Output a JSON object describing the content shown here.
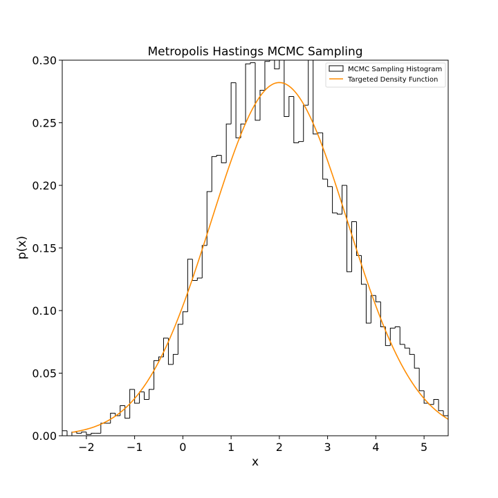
{
  "chart_data": {
    "type": "line",
    "title": "Metropolis Hastings MCMC Sampling",
    "xlabel": "x",
    "ylabel": "p(x)",
    "xlim": [
      -2.5,
      5.5
    ],
    "ylim": [
      0.0,
      0.3
    ],
    "xticks": [
      -2,
      -1,
      0,
      1,
      2,
      3,
      4,
      5
    ],
    "yticks": [
      0.0,
      0.05,
      0.1,
      0.15,
      0.2,
      0.25,
      0.3
    ],
    "ytick_labels": [
      "0.00",
      "0.05",
      "0.10",
      "0.15",
      "0.20",
      "0.25",
      "0.30"
    ],
    "grid": false,
    "legend_position": "top-right",
    "colors": {
      "histogram": "#000000",
      "density": "#ff8c00"
    },
    "series": [
      {
        "name": "MCMC Sampling Histogram",
        "type": "histogram-step",
        "bin_edges": [
          -2.5,
          -2.4,
          -2.3,
          -2.2,
          -2.1,
          -2.0,
          -1.9,
          -1.8,
          -1.7,
          -1.6,
          -1.5,
          -1.4,
          -1.3,
          -1.2,
          -1.1,
          -1.0,
          -0.9,
          -0.8,
          -0.7,
          -0.6,
          -0.5,
          -0.4,
          -0.3,
          -0.2,
          -0.1,
          0.0,
          0.1,
          0.2,
          0.3,
          0.4,
          0.5,
          0.6,
          0.7,
          0.8,
          0.9,
          1.0,
          1.1,
          1.2,
          1.3,
          1.4,
          1.5,
          1.6,
          1.7,
          1.8,
          1.9,
          2.0,
          2.1,
          2.2,
          2.3,
          2.4,
          2.5,
          2.6,
          2.7,
          2.8,
          2.9,
          3.0,
          3.1,
          3.2,
          3.3,
          3.4,
          3.5,
          3.6,
          3.7,
          3.8,
          3.9,
          4.0,
          4.1,
          4.2,
          4.3,
          4.4,
          4.5,
          4.6,
          4.7,
          4.8,
          4.9,
          5.0,
          5.1,
          5.2,
          5.3,
          5.4,
          5.5
        ],
        "values": [
          0.004,
          0.0,
          0.003,
          0.002,
          0.003,
          0.001,
          0.002,
          0.002,
          0.01,
          0.01,
          0.018,
          0.016,
          0.024,
          0.014,
          0.037,
          0.026,
          0.035,
          0.029,
          0.037,
          0.06,
          0.063,
          0.078,
          0.057,
          0.065,
          0.089,
          0.099,
          0.141,
          0.124,
          0.126,
          0.152,
          0.195,
          0.223,
          0.224,
          0.218,
          0.249,
          0.282,
          0.238,
          0.249,
          0.297,
          0.298,
          0.252,
          0.276,
          0.299,
          0.3,
          0.293,
          0.3,
          0.255,
          0.271,
          0.234,
          0.235,
          0.264,
          0.3,
          0.241,
          0.242,
          0.205,
          0.199,
          0.178,
          0.177,
          0.2,
          0.131,
          0.171,
          0.144,
          0.121,
          0.09,
          0.112,
          0.107,
          0.087,
          0.072,
          0.086,
          0.087,
          0.073,
          0.07,
          0.065,
          0.054,
          0.036,
          0.026,
          0.025,
          0.029,
          0.02,
          0.016,
          0.006
        ]
      },
      {
        "name": "Targeted Density Function",
        "type": "line",
        "function": {
          "kind": "normal",
          "mean": 2.0,
          "std": 1.414
        },
        "x_range": [
          -2.3,
          5.5
        ]
      }
    ]
  }
}
